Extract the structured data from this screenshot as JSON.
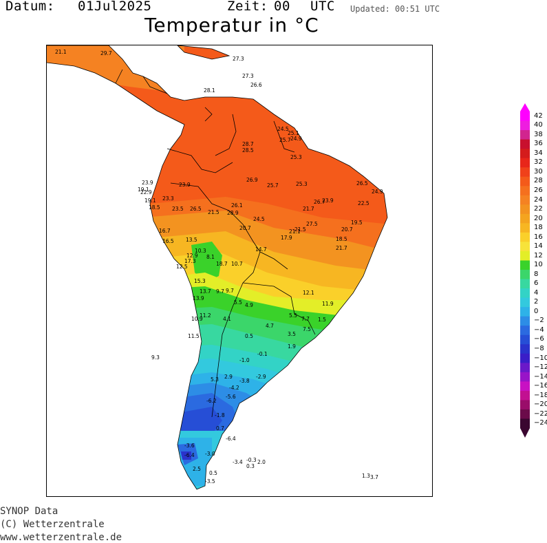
{
  "header": {
    "date_label": "Datum:",
    "date_value": "01Jul2025",
    "time_label": "Zeit:",
    "time_value": "00",
    "time_zone": "UTC",
    "updated": "Updated: 00:51 UTC"
  },
  "title": "Temperatur in °C",
  "footer": {
    "line1": "SYNOP Data",
    "line2": "(C) Wetterzentrale",
    "line3": "www.wetterzentrale.de"
  },
  "legend": {
    "labels": [
      "42",
      "40",
      "38",
      "36",
      "34",
      "32",
      "30",
      "28",
      "26",
      "24",
      "22",
      "20",
      "18",
      "16",
      "14",
      "12",
      "10",
      "8",
      "6",
      "4",
      "2",
      "0",
      "−2",
      "−4",
      "−6",
      "−8",
      "−10",
      "−12",
      "−14",
      "−16",
      "−18",
      "−20",
      "−22",
      "−24"
    ],
    "colors": [
      "#ff00ff",
      "#ee1de0",
      "#d1258f",
      "#c8102e",
      "#d41c1c",
      "#e8261a",
      "#f0411a",
      "#f45a1a",
      "#f5701e",
      "#f58222",
      "#f39320",
      "#f4a41f",
      "#f7b622",
      "#fad02a",
      "#f7e33a",
      "#e3ee28",
      "#3ad22a",
      "#3bd66a",
      "#38d8a0",
      "#33d3c6",
      "#33c9de",
      "#2eb2e8",
      "#2d8de6",
      "#2b6ae0",
      "#264ed6",
      "#2a33cc",
      "#3a1ec8",
      "#6a19c9",
      "#9814c8",
      "#c811c3",
      "#c21091",
      "#9a0d6a",
      "#6b0b4a",
      "#3a0630"
    ]
  },
  "stations": [
    {
      "t": "21.1"
    },
    {
      "t": "29.7"
    },
    {
      "t": "27.3"
    },
    {
      "t": "27.3"
    },
    {
      "t": "26.6"
    },
    {
      "t": "28.1"
    },
    {
      "t": "24.5"
    },
    {
      "t": "25.1"
    },
    {
      "t": "25.7"
    },
    {
      "t": "24.9"
    },
    {
      "t": "28.7"
    },
    {
      "t": "28.5"
    },
    {
      "t": "25.3"
    },
    {
      "t": "23.9"
    },
    {
      "t": "19.1"
    },
    {
      "t": "22.9"
    },
    {
      "t": "23.9"
    },
    {
      "t": "26.9"
    },
    {
      "t": "25.7"
    },
    {
      "t": "25.3"
    },
    {
      "t": "26.5"
    },
    {
      "t": "24.9"
    },
    {
      "t": "19.1"
    },
    {
      "t": "23.3"
    },
    {
      "t": "18.5"
    },
    {
      "t": "23.5"
    },
    {
      "t": "26.5"
    },
    {
      "t": "21.5"
    },
    {
      "t": "28.9"
    },
    {
      "t": "26.1"
    },
    {
      "t": "24.5"
    },
    {
      "t": "21.7"
    },
    {
      "t": "27.5"
    },
    {
      "t": "16.7"
    },
    {
      "t": "16.5"
    },
    {
      "t": "13.5"
    },
    {
      "t": "20.7"
    },
    {
      "t": "21.1"
    },
    {
      "t": "17.9"
    },
    {
      "t": "10.3"
    },
    {
      "t": "12.9"
    },
    {
      "t": "8.1"
    },
    {
      "t": "18.7"
    },
    {
      "t": "10.7"
    },
    {
      "t": "14.7"
    },
    {
      "t": "17.3"
    },
    {
      "t": "12.5"
    },
    {
      "t": "15.3"
    },
    {
      "t": "13.7"
    },
    {
      "t": "13.9"
    },
    {
      "t": "9.7"
    },
    {
      "t": "5.5"
    },
    {
      "t": "4.9"
    },
    {
      "t": "11.2"
    },
    {
      "t": "10.9"
    },
    {
      "t": "4.1"
    },
    {
      "t": "11.5"
    },
    {
      "t": "9.3"
    },
    {
      "t": "5.3"
    },
    {
      "t": "2.9"
    },
    {
      "t": "-4.2"
    },
    {
      "t": "-5.6"
    },
    {
      "t": "-6.2"
    },
    {
      "t": "-1.8"
    },
    {
      "t": "0.7"
    },
    {
      "t": "-6.4"
    },
    {
      "t": "-3.6"
    },
    {
      "t": "-3.0"
    },
    {
      "t": "-6.4"
    },
    {
      "t": "-3.4"
    },
    {
      "t": "2.5"
    },
    {
      "t": "0.5"
    },
    {
      "t": "-3.5"
    },
    {
      "t": "-0.3"
    },
    {
      "t": "0.3"
    },
    {
      "t": "2.0"
    },
    {
      "t": "1.3"
    },
    {
      "t": "3.7"
    },
    {
      "t": "21.5"
    },
    {
      "t": "20.7"
    },
    {
      "t": "22.5"
    },
    {
      "t": "23.9"
    },
    {
      "t": "26.7"
    },
    {
      "t": "19.5"
    },
    {
      "t": "18.5"
    },
    {
      "t": "21.7"
    },
    {
      "t": "12.1"
    },
    {
      "t": "11.9"
    },
    {
      "t": "5.5"
    },
    {
      "t": "7.7"
    },
    {
      "t": "7.5"
    },
    {
      "t": "3.5"
    },
    {
      "t": "0.5"
    },
    {
      "t": "-0.1"
    },
    {
      "t": "-1.0"
    },
    {
      "t": "-3.8"
    },
    {
      "t": "-2.9"
    },
    {
      "t": "1.9"
    },
    {
      "t": "4.7"
    },
    {
      "t": "1.5"
    },
    {
      "t": "9.7"
    }
  ]
}
